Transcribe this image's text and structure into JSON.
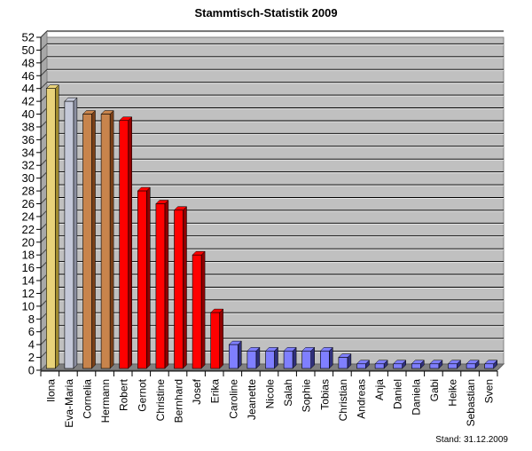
{
  "chart_data": {
    "type": "bar",
    "title": "Stammtisch-Statistik 2009",
    "xlabel": "",
    "ylabel": "",
    "ylim": [
      0,
      52
    ],
    "ytick_step": 2,
    "grid": true,
    "legend": null,
    "annotation": "Stand: 31.12.2009",
    "categories": [
      "Ilona",
      "Eva-Maria",
      "Cornelia",
      "Hermann",
      "Robert",
      "Gernot",
      "Christine",
      "Bernhard",
      "Josef",
      "Erika",
      "Caroline",
      "Jeanette",
      "Nicole",
      "Salah",
      "Sophie",
      "Tobias",
      "Christian",
      "Andreas",
      "Anja",
      "Daniel",
      "Daniela",
      "Gabi",
      "Heike",
      "Sebastian",
      "Sven"
    ],
    "values": [
      44,
      42,
      40,
      40,
      39,
      28,
      26,
      25,
      18,
      9,
      4,
      3,
      3,
      3,
      3,
      3,
      2,
      1,
      1,
      1,
      1,
      1,
      1,
      1,
      1
    ],
    "colors": [
      "#e8d27a",
      "#c4c8d8",
      "#c8844c",
      "#c8844c",
      "#ff0000",
      "#ff0000",
      "#ff0000",
      "#ff0000",
      "#ff0000",
      "#ff0000",
      "#7f7fff",
      "#7f7fff",
      "#7f7fff",
      "#7f7fff",
      "#7f7fff",
      "#7f7fff",
      "#7f7fff",
      "#7f7fff",
      "#7f7fff",
      "#7f7fff",
      "#7f7fff",
      "#7f7fff",
      "#7f7fff",
      "#7f7fff",
      "#7f7fff"
    ],
    "shade_colors": [
      "#a08a30",
      "#8a8ea0",
      "#7a4018",
      "#7a4018",
      "#900000",
      "#900000",
      "#900000",
      "#900000",
      "#900000",
      "#900000",
      "#30307a",
      "#30307a",
      "#30307a",
      "#30307a",
      "#30307a",
      "#30307a",
      "#30307a",
      "#30307a",
      "#30307a",
      "#30307a",
      "#30307a",
      "#30307a",
      "#30307a",
      "#30307a",
      "#30307a"
    ]
  },
  "header": {
    "title": "Stammtisch-Statistik 2009"
  },
  "footer": {
    "stand": "Stand: 31.12.2009"
  },
  "style": {
    "wall": "#c0c0c0",
    "floor": "#808080",
    "gridline": "#000000"
  }
}
